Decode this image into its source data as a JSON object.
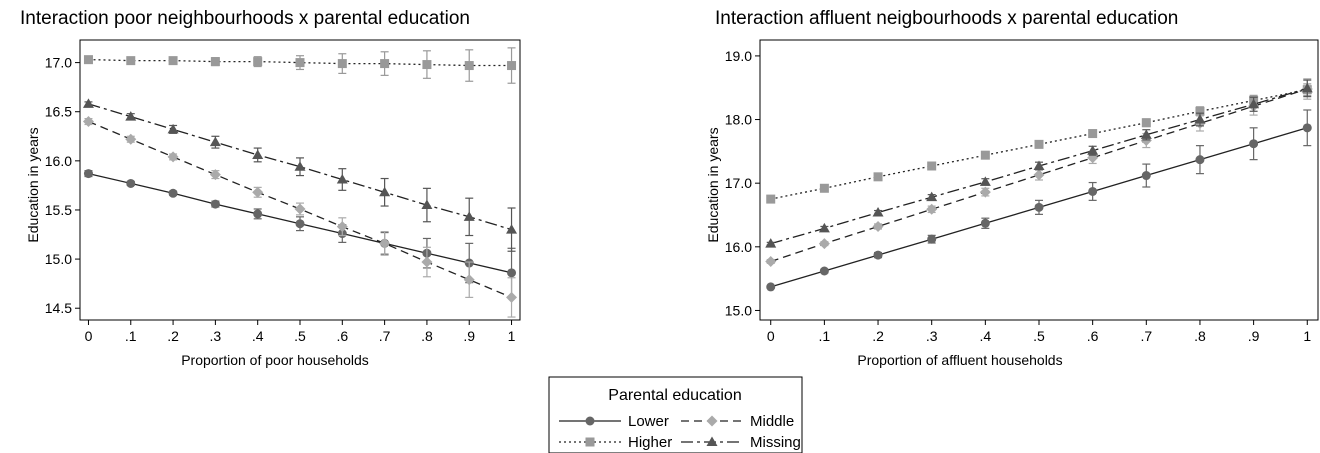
{
  "chart_data": [
    {
      "type": "line",
      "title": "Interaction poor neighbourhoods x parental education",
      "xlabel": "Proportion of poor households",
      "ylabel": "Education in years",
      "x": [
        0,
        0.1,
        0.2,
        0.3,
        0.4,
        0.5,
        0.6,
        0.7,
        0.8,
        0.9,
        1
      ],
      "x_tick_labels": [
        "0",
        ".1",
        ".2",
        ".3",
        ".4",
        ".5",
        ".6",
        ".7",
        ".8",
        ".9",
        "1"
      ],
      "y_ticks": [
        14.5,
        15.0,
        15.5,
        16.0,
        16.5,
        17.0
      ],
      "y_tick_labels": [
        "14.5",
        "15.0",
        "15.5",
        "16.0",
        "16.5",
        "17.0"
      ],
      "xlim": [
        -0.02,
        1.02
      ],
      "ylim": [
        14.38,
        17.23
      ],
      "grid": false,
      "series": [
        {
          "name": "Lower",
          "values": [
            15.87,
            15.77,
            15.67,
            15.56,
            15.46,
            15.36,
            15.26,
            15.16,
            15.06,
            14.96,
            14.86
          ],
          "err": [
            0.03,
            0.02,
            0.02,
            0.03,
            0.05,
            0.07,
            0.09,
            0.11,
            0.15,
            0.2,
            0.25
          ]
        },
        {
          "name": "Higher",
          "values": [
            17.03,
            17.02,
            17.02,
            17.01,
            17.01,
            17.0,
            16.99,
            16.99,
            16.98,
            16.97,
            16.97
          ],
          "err": [
            0.02,
            0.02,
            0.03,
            0.04,
            0.05,
            0.07,
            0.1,
            0.12,
            0.14,
            0.16,
            0.18
          ]
        },
        {
          "name": "Middle",
          "values": [
            16.4,
            16.22,
            16.04,
            15.86,
            15.68,
            15.51,
            15.33,
            15.16,
            14.97,
            14.79,
            14.61
          ],
          "err": [
            0.03,
            0.03,
            0.03,
            0.04,
            0.05,
            0.06,
            0.09,
            0.12,
            0.15,
            0.18,
            0.2
          ]
        },
        {
          "name": "Missing",
          "values": [
            16.58,
            16.45,
            16.32,
            16.19,
            16.06,
            15.94,
            15.81,
            15.68,
            15.55,
            15.43,
            15.3
          ],
          "err": [
            0.02,
            0.03,
            0.04,
            0.06,
            0.07,
            0.09,
            0.11,
            0.14,
            0.17,
            0.19,
            0.22
          ]
        }
      ]
    },
    {
      "type": "line",
      "title": "Interaction affluent neigbourhoods x parental education",
      "xlabel": "Proportion of affluent households",
      "ylabel": "Education in years",
      "x": [
        0,
        0.1,
        0.2,
        0.3,
        0.4,
        0.5,
        0.6,
        0.7,
        0.8,
        0.9,
        1
      ],
      "x_tick_labels": [
        "0",
        ".1",
        ".2",
        ".3",
        ".4",
        ".5",
        ".6",
        ".7",
        ".8",
        ".9",
        "1"
      ],
      "y_ticks": [
        15.0,
        16.0,
        17.0,
        18.0,
        19.0
      ],
      "y_tick_labels": [
        "15.0",
        "16.0",
        "17.0",
        "18.0",
        "19.0"
      ],
      "xlim": [
        -0.02,
        1.02
      ],
      "ylim": [
        14.85,
        19.25
      ],
      "grid": false,
      "series": [
        {
          "name": "Lower",
          "values": [
            15.37,
            15.62,
            15.87,
            16.12,
            16.37,
            16.62,
            16.87,
            17.12,
            17.37,
            17.62,
            17.87
          ],
          "err": [
            0.02,
            0.03,
            0.04,
            0.06,
            0.08,
            0.11,
            0.14,
            0.18,
            0.22,
            0.25,
            0.28
          ]
        },
        {
          "name": "Higher",
          "values": [
            16.75,
            16.92,
            17.1,
            17.27,
            17.44,
            17.61,
            17.78,
            17.95,
            18.13,
            18.3,
            18.47
          ],
          "err": [
            0.02,
            0.02,
            0.03,
            0.03,
            0.04,
            0.04,
            0.05,
            0.06,
            0.07,
            0.08,
            0.09
          ]
        },
        {
          "name": "Middle",
          "values": [
            15.77,
            16.05,
            16.32,
            16.59,
            16.86,
            17.13,
            17.4,
            17.67,
            17.94,
            18.21,
            18.48
          ],
          "err": [
            0.03,
            0.03,
            0.04,
            0.05,
            0.06,
            0.08,
            0.09,
            0.11,
            0.12,
            0.14,
            0.16
          ]
        },
        {
          "name": "Missing",
          "values": [
            16.05,
            16.29,
            16.54,
            16.78,
            17.02,
            17.27,
            17.51,
            17.76,
            18.0,
            18.24,
            18.49
          ],
          "err": [
            0.02,
            0.03,
            0.03,
            0.04,
            0.05,
            0.06,
            0.07,
            0.08,
            0.1,
            0.11,
            0.13
          ]
        }
      ]
    }
  ],
  "legend": {
    "title": "Parental education",
    "items": [
      "Lower",
      "Middle",
      "Higher",
      "Missing"
    ]
  },
  "series_styles": {
    "Lower": {
      "marker": "circle",
      "color": "#666666",
      "line": "solid"
    },
    "Higher": {
      "marker": "square",
      "color": "#999999",
      "line": "dotted"
    },
    "Middle": {
      "marker": "diamond",
      "color": "#aaaaaa",
      "line": "dashed"
    },
    "Missing": {
      "marker": "triangle",
      "color": "#555555",
      "line": "dash-dot"
    }
  }
}
